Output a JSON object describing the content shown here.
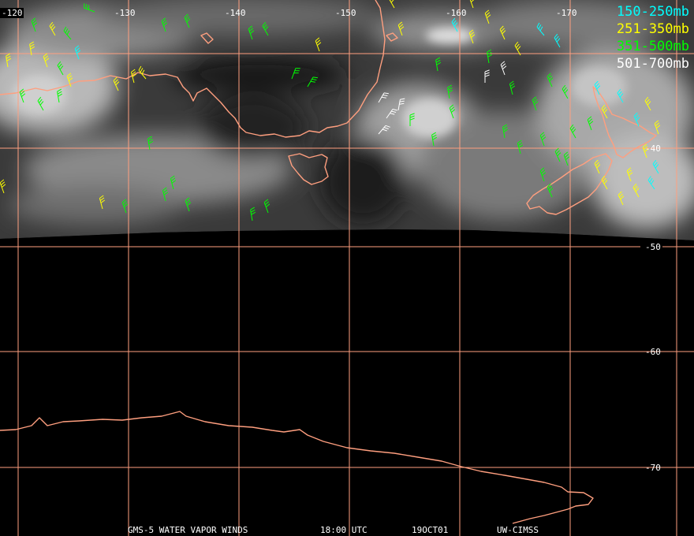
{
  "legend": [
    {
      "label": "150-250mb",
      "color": "#00ffff"
    },
    {
      "label": "251-350mb",
      "color": "#ffff00"
    },
    {
      "label": "351-500mb",
      "color": "#00ff00"
    },
    {
      "label": "501-700mb",
      "color": "#ffffff"
    }
  ],
  "longitude_labels": [
    "-120",
    "-130",
    "-140",
    "-150",
    "-160",
    "-170"
  ],
  "latitude_labels": [
    "-40",
    "-50",
    "-60",
    "-70"
  ],
  "footer": {
    "satellite": "GMS-5 WATER VAPOR WINDS",
    "time": "18:00 UTC",
    "date": "19OCT01",
    "credit": "UW-CIMSS"
  },
  "colors": {
    "grid": "#ff9f7f",
    "coastline": "#ff9f7f",
    "background": "#000000"
  }
}
